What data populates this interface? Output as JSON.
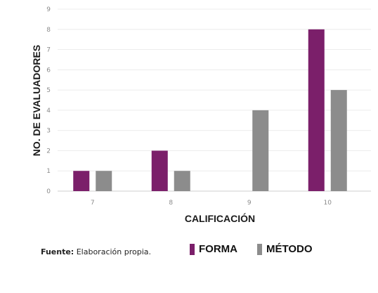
{
  "chart_data": {
    "type": "bar",
    "categories": [
      "7",
      "8",
      "9",
      "10"
    ],
    "series": [
      {
        "name": "FORMA",
        "values": [
          1,
          2,
          0,
          8
        ],
        "color": "#7b1f6a"
      },
      {
        "name": "MÉTODO",
        "values": [
          1,
          1,
          4,
          5
        ],
        "color": "#8c8c8c"
      }
    ],
    "xlabel": "CALIFICACIÓN",
    "ylabel": "NO. DE EVALUADORES",
    "ylim": [
      0,
      9
    ],
    "yticks": [
      0,
      1,
      2,
      3,
      4,
      5,
      6,
      7,
      8,
      9
    ],
    "grid": true,
    "legend_position": "bottom"
  },
  "footer": {
    "source_label": "Fuente:",
    "source_text": " Elaboración propia."
  }
}
